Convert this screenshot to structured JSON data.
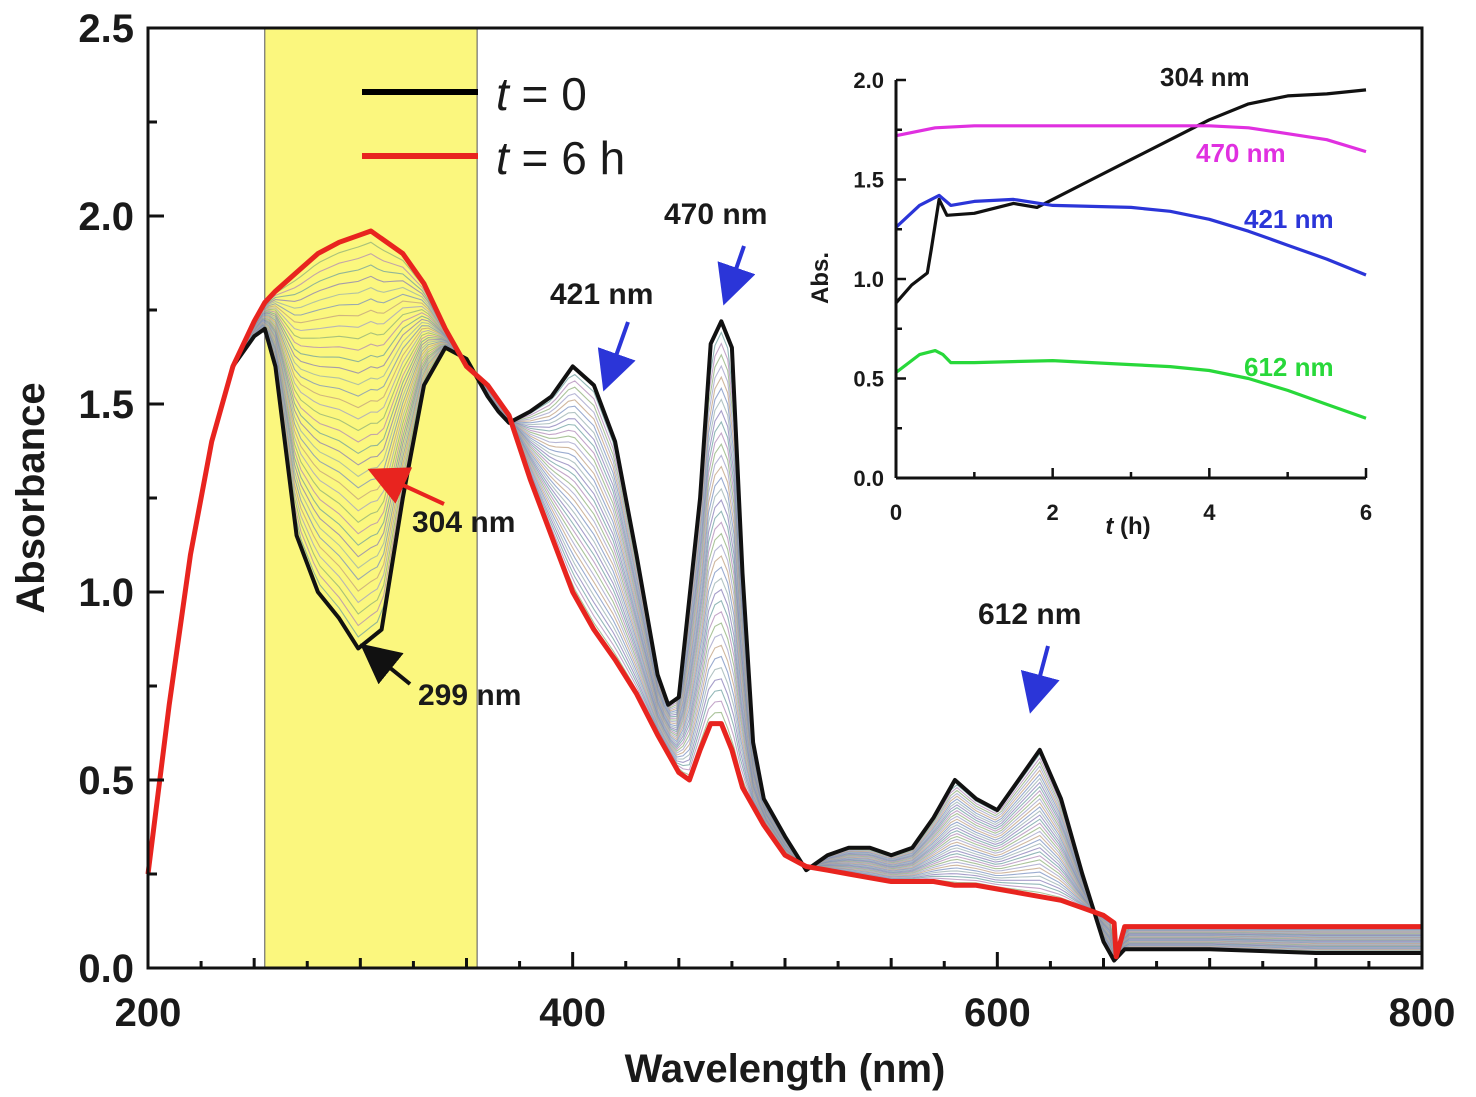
{
  "chart_data": {
    "type": "line",
    "main": {
      "xlabel": "Wavelength (nm)",
      "ylabel": "Absorbance",
      "xlim": [
        200,
        800
      ],
      "ylim": [
        0,
        2.5
      ],
      "xticks": [
        "200",
        "400",
        "600",
        "800"
      ],
      "yticks": [
        "0.0",
        "0.5",
        "1.0",
        "1.5",
        "2.0",
        "2.5"
      ],
      "highlight_band_nm": [
        255,
        355
      ],
      "highlight_color": "#fbf77e",
      "legend": [
        {
          "label_var": "t",
          "label_rest": " = 0",
          "color": "#000000"
        },
        {
          "label_var": "t",
          "label_rest": " = 6 h",
          "color": "#e8241f"
        }
      ],
      "series": [
        {
          "name": "t = 0",
          "color": "#111111",
          "x": [
            200,
            210,
            220,
            230,
            240,
            250,
            255,
            260,
            270,
            280,
            290,
            299,
            310,
            320,
            330,
            340,
            350,
            360,
            365,
            370,
            380,
            390,
            400,
            410,
            420,
            430,
            440,
            445,
            450,
            460,
            465,
            470,
            475,
            480,
            485,
            490,
            500,
            510,
            520,
            530,
            540,
            550,
            560,
            570,
            580,
            590,
            600,
            610,
            620,
            630,
            640,
            650,
            655,
            660,
            670,
            700,
            750,
            800
          ],
          "y": [
            0.25,
            0.7,
            1.1,
            1.4,
            1.6,
            1.68,
            1.7,
            1.6,
            1.15,
            1.0,
            0.93,
            0.85,
            0.9,
            1.25,
            1.55,
            1.65,
            1.62,
            1.52,
            1.48,
            1.45,
            1.48,
            1.52,
            1.6,
            1.55,
            1.4,
            1.1,
            0.78,
            0.7,
            0.72,
            1.25,
            1.66,
            1.72,
            1.65,
            1.05,
            0.6,
            0.45,
            0.35,
            0.26,
            0.3,
            0.32,
            0.32,
            0.3,
            0.32,
            0.4,
            0.5,
            0.45,
            0.42,
            0.5,
            0.58,
            0.45,
            0.25,
            0.07,
            0.02,
            0.05,
            0.05,
            0.05,
            0.04,
            0.04
          ]
        },
        {
          "name": "t = 6 h",
          "color": "#e8241f",
          "x": [
            200,
            210,
            220,
            230,
            240,
            250,
            255,
            260,
            270,
            280,
            290,
            300,
            305,
            310,
            320,
            330,
            340,
            350,
            360,
            370,
            380,
            390,
            400,
            410,
            420,
            430,
            440,
            450,
            455,
            460,
            465,
            470,
            475,
            480,
            490,
            500,
            510,
            520,
            530,
            540,
            550,
            560,
            570,
            580,
            590,
            600,
            610,
            620,
            630,
            640,
            650,
            655,
            656,
            660,
            700,
            750,
            800
          ],
          "y": [
            0.25,
            0.7,
            1.1,
            1.4,
            1.6,
            1.72,
            1.77,
            1.8,
            1.85,
            1.9,
            1.93,
            1.95,
            1.96,
            1.94,
            1.9,
            1.82,
            1.7,
            1.6,
            1.55,
            1.47,
            1.3,
            1.15,
            1.0,
            0.9,
            0.82,
            0.73,
            0.62,
            0.52,
            0.5,
            0.58,
            0.65,
            0.65,
            0.58,
            0.48,
            0.38,
            0.3,
            0.27,
            0.26,
            0.25,
            0.24,
            0.23,
            0.23,
            0.23,
            0.22,
            0.22,
            0.21,
            0.2,
            0.19,
            0.18,
            0.16,
            0.14,
            0.12,
            0.03,
            0.11,
            0.11,
            0.11,
            0.11
          ]
        }
      ],
      "annotations": [
        {
          "text": "304 nm",
          "color": "#1a1a1a",
          "arrow_color": "#e8241f",
          "point_x": 304,
          "point_y": 1.34
        },
        {
          "text": "299 nm",
          "color": "#1a1a1a",
          "arrow_color": "#111111",
          "point_x": 299,
          "point_y": 0.86
        },
        {
          "text": "421 nm",
          "color": "#1a1a1a",
          "arrow_color": "#2b35d8",
          "point_x": 421,
          "point_y": 1.55
        },
        {
          "text": "470 nm",
          "color": "#1a1a1a",
          "arrow_color": "#2b35d8",
          "point_x": 470,
          "point_y": 1.77
        },
        {
          "text": "612 nm",
          "color": "#1a1a1a",
          "arrow_color": "#2b35d8",
          "point_x": 612,
          "point_y": 0.66
        }
      ]
    },
    "inset": {
      "ylabel": "Abs.",
      "xlabel_var": "t",
      "xlabel_rest": " (h)",
      "xlim": [
        0,
        6
      ],
      "ylim": [
        0,
        2
      ],
      "xticks": [
        "0",
        "2",
        "4",
        "6"
      ],
      "yticks": [
        "0.0",
        "0.5",
        "1.0",
        "1.5",
        "2.0"
      ],
      "series": [
        {
          "name": "304 nm",
          "color": "#111111",
          "x": [
            0,
            0.2,
            0.4,
            0.45,
            0.55,
            0.65,
            1.0,
            1.5,
            1.8,
            2.0,
            2.5,
            3.0,
            3.5,
            4.0,
            4.5,
            5.0,
            5.5,
            6.0
          ],
          "y": [
            0.88,
            0.97,
            1.03,
            1.15,
            1.4,
            1.32,
            1.33,
            1.38,
            1.36,
            1.4,
            1.5,
            1.6,
            1.7,
            1.8,
            1.88,
            1.92,
            1.93,
            1.95
          ]
        },
        {
          "name": "470 nm",
          "color": "#e030e0",
          "x": [
            0,
            0.5,
            1.0,
            2.0,
            3.0,
            4.0,
            4.5,
            5.0,
            5.5,
            6.0
          ],
          "y": [
            1.72,
            1.76,
            1.77,
            1.77,
            1.77,
            1.77,
            1.76,
            1.73,
            1.7,
            1.64
          ]
        },
        {
          "name": "421 nm",
          "color": "#2b35d8",
          "x": [
            0,
            0.3,
            0.55,
            0.7,
            1.0,
            1.5,
            2.0,
            3.0,
            3.5,
            4.0,
            4.5,
            5.0,
            5.5,
            6.0
          ],
          "y": [
            1.26,
            1.37,
            1.42,
            1.37,
            1.39,
            1.4,
            1.37,
            1.36,
            1.34,
            1.3,
            1.24,
            1.17,
            1.1,
            1.02
          ]
        },
        {
          "name": "612 nm",
          "color": "#28d83a",
          "x": [
            0,
            0.3,
            0.5,
            0.6,
            0.7,
            1.0,
            2.0,
            3.0,
            3.5,
            4.0,
            4.5,
            5.0,
            5.5,
            6.0
          ],
          "y": [
            0.53,
            0.62,
            0.64,
            0.62,
            0.58,
            0.58,
            0.59,
            0.57,
            0.56,
            0.54,
            0.5,
            0.44,
            0.37,
            0.3
          ]
        }
      ],
      "labels": [
        {
          "text": "304 nm",
          "color": "#1a1a1a"
        },
        {
          "text": "470 nm",
          "color": "#e030e0"
        },
        {
          "text": "421 nm",
          "color": "#2b35d8"
        },
        {
          "text": "612 nm",
          "color": "#28d83a"
        }
      ]
    }
  }
}
